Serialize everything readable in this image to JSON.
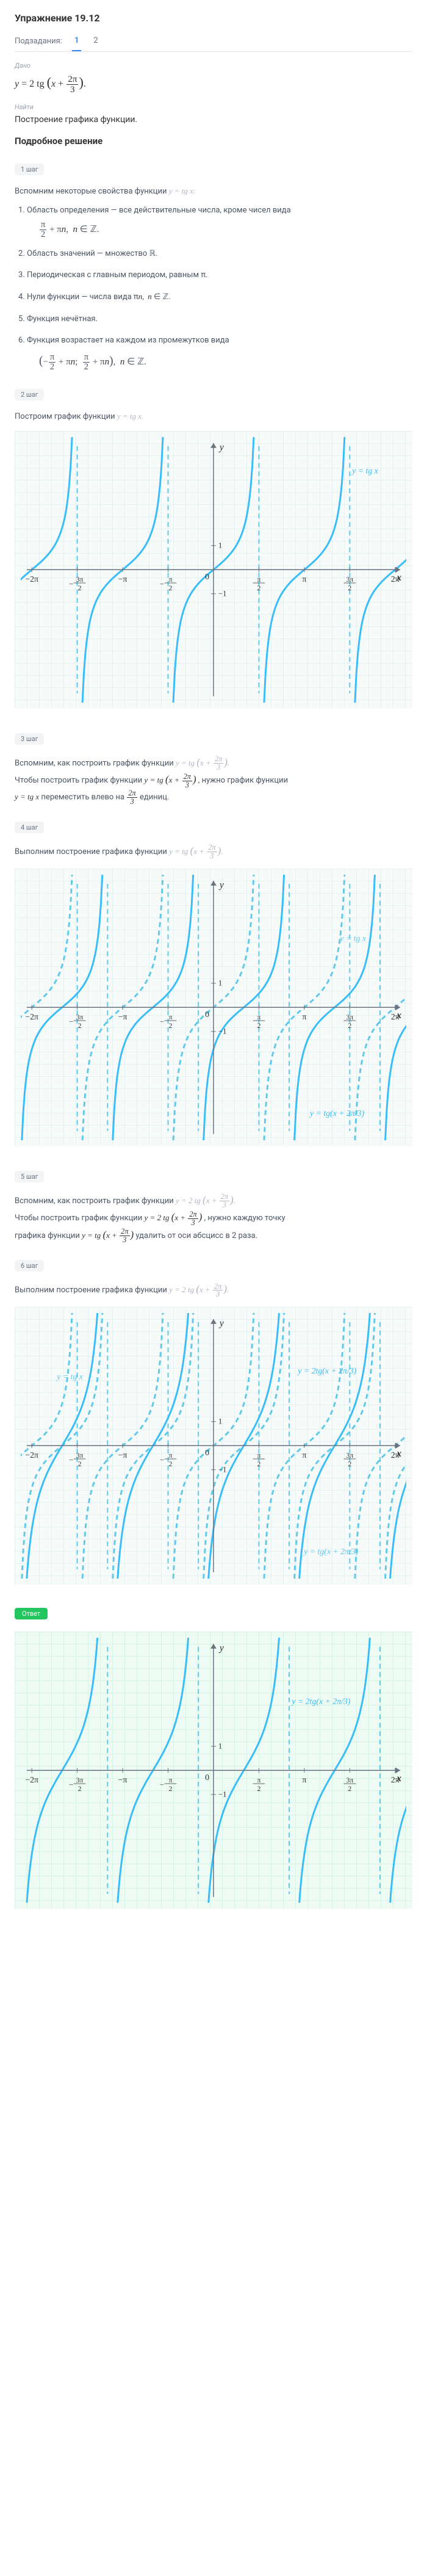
{
  "page": {
    "title": "Упражнение 19.12",
    "subLabel": "Подзадания:",
    "tabs": [
      "1",
      "2"
    ],
    "activeTab": 0
  },
  "given": {
    "label": "Дано",
    "formula": "y = 2 tg (x + 2π⁄3).",
    "findLabel": "Найти",
    "findText": "Построение графика функции."
  },
  "solution": {
    "title": "Подробное решение",
    "step1": {
      "badge": "1 шаг",
      "intro": "Вспомним некоторые свойства функции",
      "introMath": "y = tg x:",
      "props": [
        {
          "text": "Область определения — все действительные числа, кроме чисел вида",
          "formula": "π/2 + πn,  n ∈ ℤ."
        },
        {
          "text": "Область значений — множество ℝ."
        },
        {
          "text": "Периодическая с главным периодом, равным π."
        },
        {
          "text": "Нули функции — числа вида πn,  n ∈ ℤ."
        },
        {
          "text": "Функция нечётная."
        },
        {
          "text": "Функция возрастает на каждом из промежутков вида",
          "formula": "(−π/2 + πn;  π/2 + πn),  n ∈ ℤ."
        }
      ]
    },
    "step2": {
      "badge": "2 шаг",
      "text": "Построим график функции",
      "math": "y = tg x."
    },
    "step3": {
      "badge": "3 шаг",
      "text1": "Вспомним, как построить график функции",
      "math1": "y = tg (x + 2π/3).",
      "text2a": "Чтобы построить график функции",
      "math2": "y = tg (x + 2π/3)",
      "text2b": ", нужно график функции",
      "text3a": "y = tg x",
      "text3b": " переместить влево на ",
      "math3": "2π/3",
      "text3c": " единиц."
    },
    "step4": {
      "badge": "4 шаг",
      "text": "Выполним построение графика функции",
      "math": "y = tg (x + 2π/3)."
    },
    "step5": {
      "badge": "5 шаг",
      "text1": "Вспомним, как построить график функции",
      "math1": "y = 2 tg (x + 2π/3).",
      "text2a": "Чтобы построить график функции",
      "math2": "y = 2 tg (x + 2π/3)",
      "text2b": ", нужно каждую точку",
      "text3a": "графика функции",
      "math3": "y = tg (x + 2π/3)",
      "text3b": " удалить от оси абсцисс в 2 раза."
    },
    "step6": {
      "badge": "6 шаг",
      "text": "Выполним построение графика функции",
      "math": "y = 2 tg (x + 2π/3)."
    }
  },
  "answer": {
    "badge": "Ответ"
  },
  "graphStyle": {
    "curveColor": "#38bdf8",
    "curveWidth": 3,
    "axisColor": "#6b7280",
    "gridBg": "#f6fbfa",
    "answerBg": "#eefbf4",
    "dashStroke": "#60c9ea",
    "labelFont": "italic 14px Times New Roman",
    "xTicks": [
      "−2π",
      "−3π/2",
      "−π",
      "−π/2",
      "0",
      "π/2",
      "π",
      "3π/2",
      "2π"
    ],
    "yLabel": "y",
    "xLabel": "x",
    "one": "1",
    "negOne": "−1",
    "legends": {
      "tgx": "y = tg x",
      "shifted": "y = tg(x + 2π/3)",
      "scaled": "y = 2tg(x + 2π/3)"
    }
  }
}
